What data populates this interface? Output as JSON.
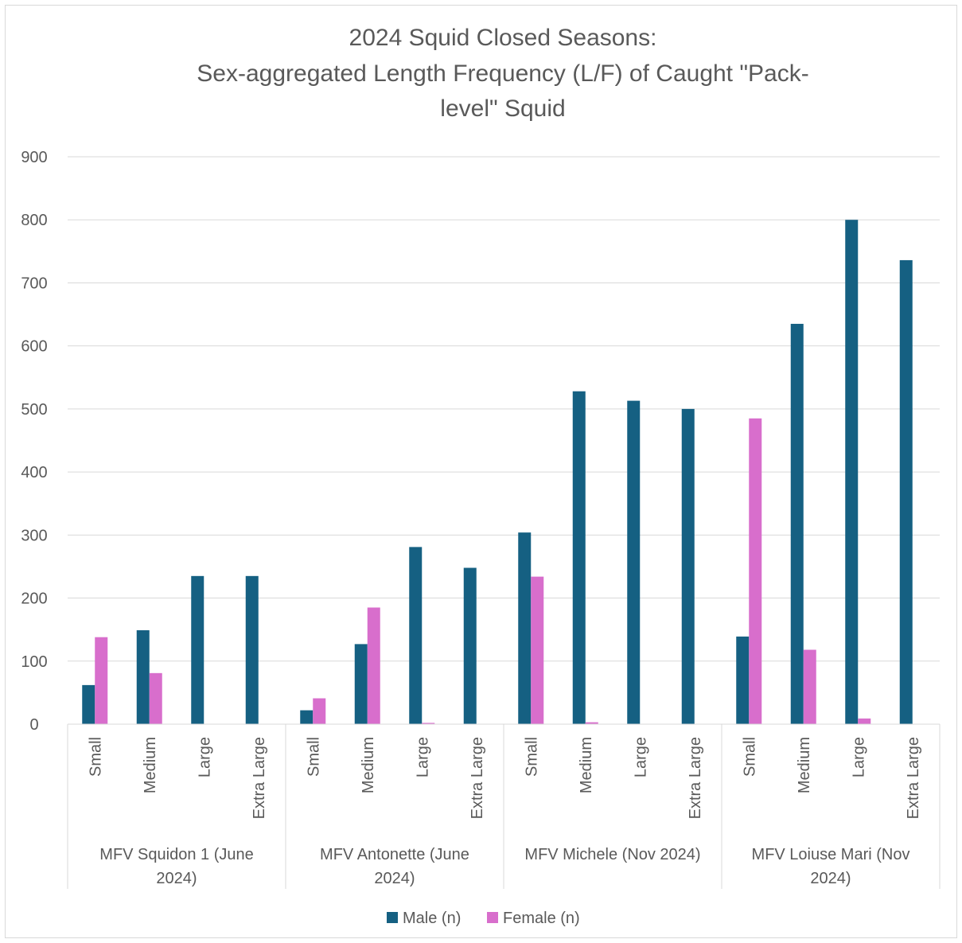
{
  "chart_data": {
    "type": "bar",
    "title": "2024 Squid Closed Seasons:",
    "subtitle_lines": [
      "Sex-aggregated Length Frequency (L/F) of Caught \"Pack-",
      "level\" Squid"
    ],
    "xlabel": "",
    "ylabel": "",
    "ylim": [
      0,
      900
    ],
    "yticks": [
      "0",
      "100",
      "200",
      "300",
      "400",
      "500",
      "600",
      "700",
      "800",
      "900"
    ],
    "grid": true,
    "legend_position": "bottom",
    "groups": [
      {
        "label_lines": [
          "MFV Squidon 1 (June",
          "2024)"
        ],
        "categories": [
          "Small",
          "Medium",
          "Large",
          "Extra Large"
        ]
      },
      {
        "label_lines": [
          "MFV Antonette (June",
          "2024)"
        ],
        "categories": [
          "Small",
          "Medium",
          "Large",
          "Extra Large"
        ]
      },
      {
        "label_lines": [
          "MFV Michele (Nov 2024)"
        ],
        "categories": [
          "Small",
          "Medium",
          "Large",
          "Extra Large"
        ]
      },
      {
        "label_lines": [
          "MFV Loiuse Mari (Nov",
          "2024)"
        ],
        "categories": [
          "Small",
          "Medium",
          "Large",
          "Extra Large"
        ]
      }
    ],
    "series": [
      {
        "name": "Male (n)",
        "color": "#156082",
        "values": [
          62,
          149,
          235,
          235,
          22,
          127,
          281,
          248,
          304,
          528,
          513,
          500,
          139,
          635,
          800,
          736
        ]
      },
      {
        "name": "Female (n)",
        "color": "#d86ecc",
        "values": [
          138,
          81,
          0,
          0,
          41,
          185,
          2,
          0,
          234,
          3,
          0,
          0,
          485,
          118,
          9,
          0
        ]
      }
    ]
  }
}
